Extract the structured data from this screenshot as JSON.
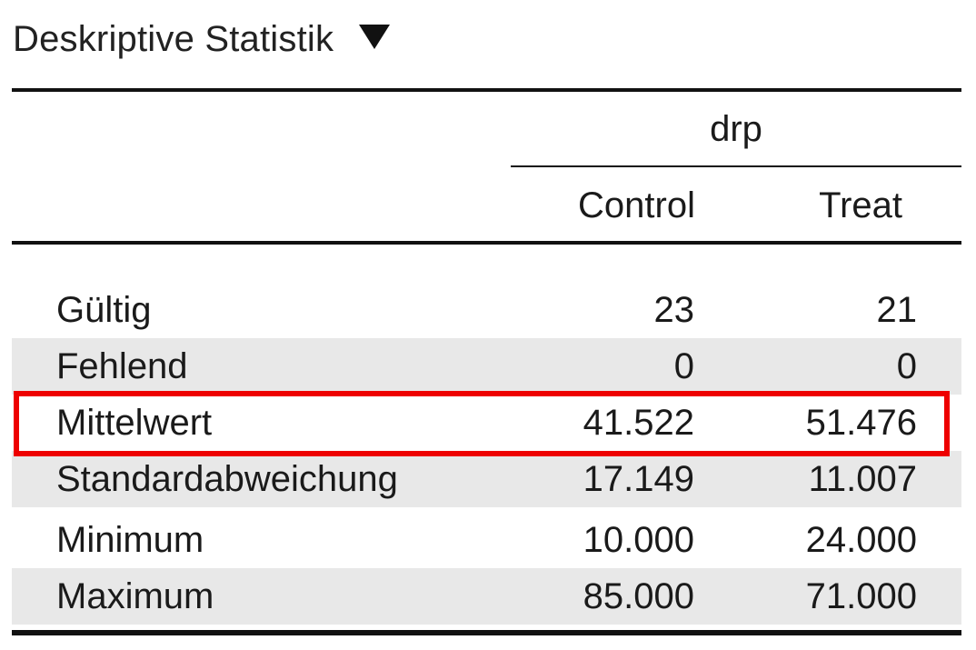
{
  "title": "Deskriptive Statistik",
  "toggle_icon": "triangle-down-icon",
  "table": {
    "group_label": "drp",
    "columns": [
      "Control",
      "Treat"
    ],
    "rows": [
      {
        "label": "Gültig",
        "control": "23",
        "treat": "21",
        "shaded": false
      },
      {
        "label": "Fehlend",
        "control": "0",
        "treat": "0",
        "shaded": true
      },
      {
        "label": "Mittelwert",
        "control": "41.522",
        "treat": "51.476",
        "shaded": false,
        "highlighted": true
      },
      {
        "label": "Standardabweichung",
        "control": "17.149",
        "treat": "11.007",
        "shaded": true
      },
      {
        "label": "Minimum",
        "control": "10.000",
        "treat": "24.000",
        "shaded": false
      },
      {
        "label": "Maximum",
        "control": "85.000",
        "treat": "71.000",
        "shaded": true
      }
    ]
  },
  "colors": {
    "highlight": "#ee0000",
    "row_shade": "#e8e8e8"
  }
}
